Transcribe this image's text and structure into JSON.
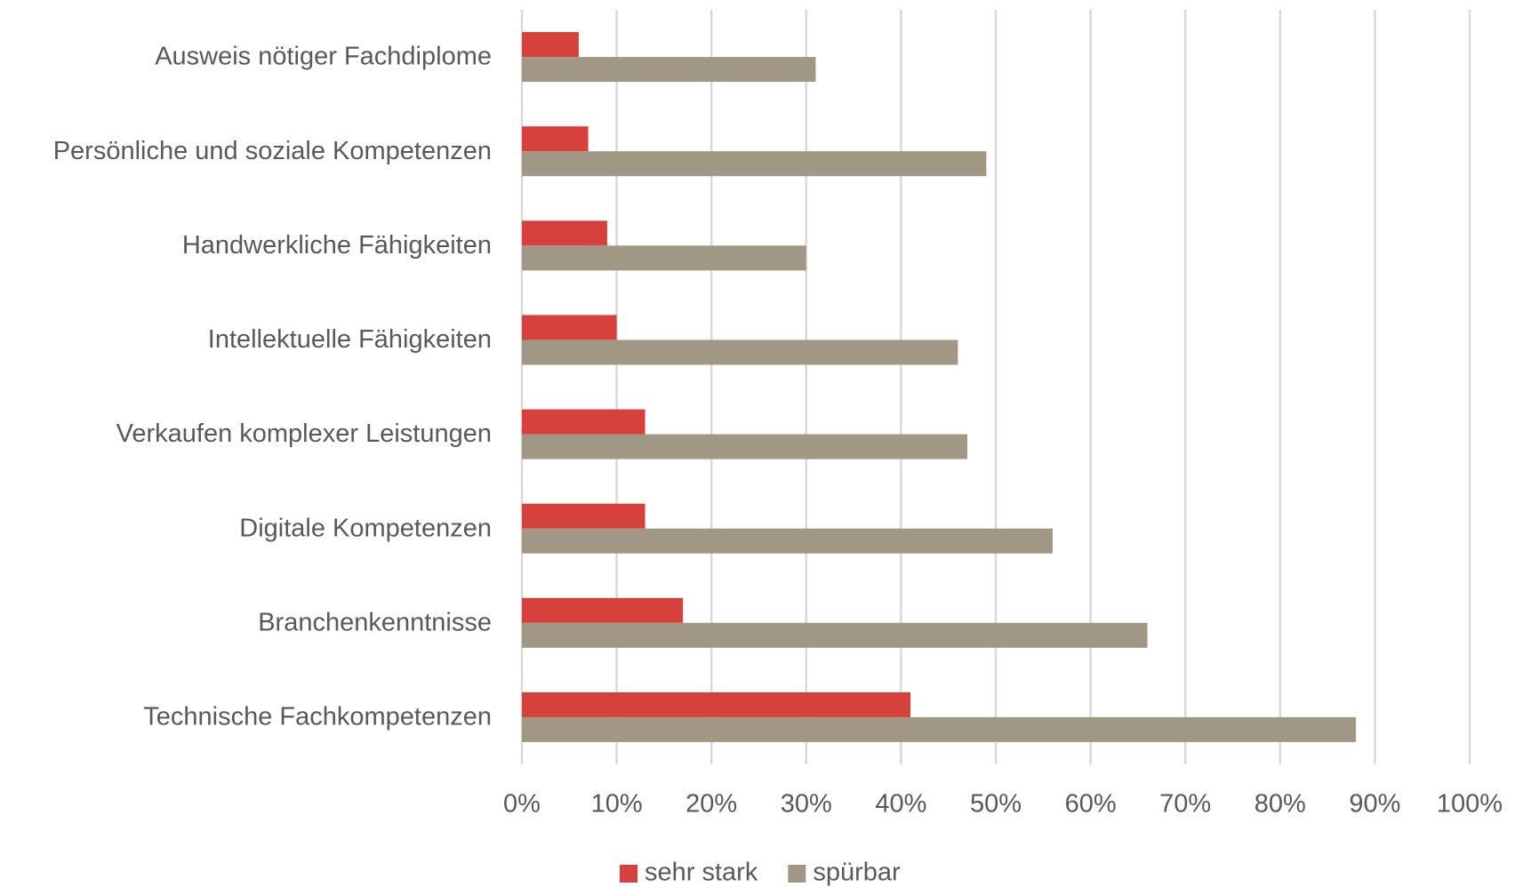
{
  "chart_data": {
    "type": "bar",
    "orientation": "horizontal",
    "categories": [
      "Ausweis nötiger Fachdiplome",
      "Persönliche und soziale Kompetenzen",
      "Handwerkliche Fähigkeiten",
      "Intellektuelle Fähigkeiten",
      "Verkaufen komplexer Leistungen",
      "Digitale Kompetenzen",
      "Branchenkenntnisse",
      "Technische Fachkompetenzen"
    ],
    "series": [
      {
        "name": "sehr stark",
        "color": "#d7413c",
        "values": [
          6,
          7,
          9,
          10,
          13,
          13,
          17,
          41
        ]
      },
      {
        "name": "spürbar",
        "color": "#a09884",
        "values": [
          31,
          49,
          30,
          46,
          47,
          56,
          66,
          88
        ]
      }
    ],
    "xlim": [
      0,
      100
    ],
    "xticks": [
      {
        "value": 0,
        "label": "0%"
      },
      {
        "value": 10,
        "label": "10%"
      },
      {
        "value": 20,
        "label": "20%"
      },
      {
        "value": 30,
        "label": "30%"
      },
      {
        "value": 40,
        "label": "40%"
      },
      {
        "value": 50,
        "label": "50%"
      },
      {
        "value": 60,
        "label": "60%"
      },
      {
        "value": 70,
        "label": "70%"
      },
      {
        "value": 80,
        "label": "80%"
      },
      {
        "value": 90,
        "label": "90%"
      },
      {
        "value": 100,
        "label": "100%"
      }
    ],
    "grid": true,
    "legend": "bottom"
  }
}
